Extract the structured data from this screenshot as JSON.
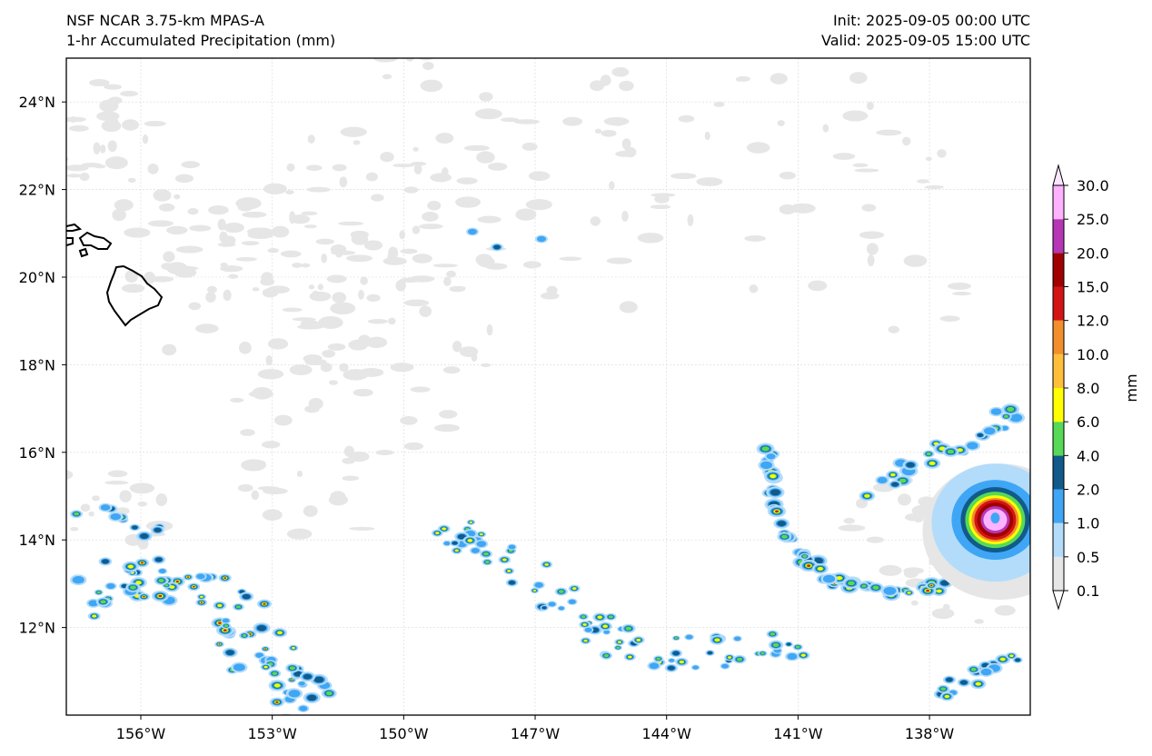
{
  "header": {
    "model": "NSF NCAR 3.75-km MPAS-A",
    "field": "1-hr Accumulated Precipitation (mm)",
    "init": "Init: 2025-09-05 00:00 UTC",
    "valid": "Valid: 2025-09-05 15:00 UTC"
  },
  "map": {
    "lon_range": [
      -157.7,
      -135.7
    ],
    "lat_range": [
      10.0,
      25.0
    ],
    "lon_ticks": [
      {
        "value": -156,
        "label": "156°W"
      },
      {
        "value": -153,
        "label": "153°W"
      },
      {
        "value": -150,
        "label": "150°W"
      },
      {
        "value": -147,
        "label": "147°W"
      },
      {
        "value": -144,
        "label": "144°W"
      },
      {
        "value": -141,
        "label": "141°W"
      },
      {
        "value": -138,
        "label": "138°W"
      }
    ],
    "lat_ticks": [
      {
        "value": 24,
        "label": "24°N"
      },
      {
        "value": 22,
        "label": "22°N"
      },
      {
        "value": 20,
        "label": "20°N"
      },
      {
        "value": 18,
        "label": "18°N"
      },
      {
        "value": 16,
        "label": "16°N"
      },
      {
        "value": 14,
        "label": "14°N"
      },
      {
        "value": 12,
        "label": "12°N"
      }
    ],
    "gridlines": true,
    "coastline_color": "#000000"
  },
  "colorbar": {
    "unit": "mm",
    "extend": "both",
    "levels": [
      "0.1",
      "0.5",
      "1.0",
      "2.0",
      "4.0",
      "6.0",
      "8.0",
      "10.0",
      "12.0",
      "15.0",
      "20.0",
      "25.0",
      "30.0"
    ],
    "colors": [
      "#e6e6e6",
      "#b3dcfa",
      "#3fa6f5",
      "#115a8a",
      "#56d957",
      "#ffff00",
      "#ffbf3a",
      "#f28e2b",
      "#d41414",
      "#a00000",
      "#b636b6",
      "#ffb3ff"
    ],
    "under_color": "#ffffff",
    "over_color": "#ffe6ff"
  },
  "features": {
    "hurricane_center": {
      "lon": -136.5,
      "lat": 14.5
    }
  }
}
